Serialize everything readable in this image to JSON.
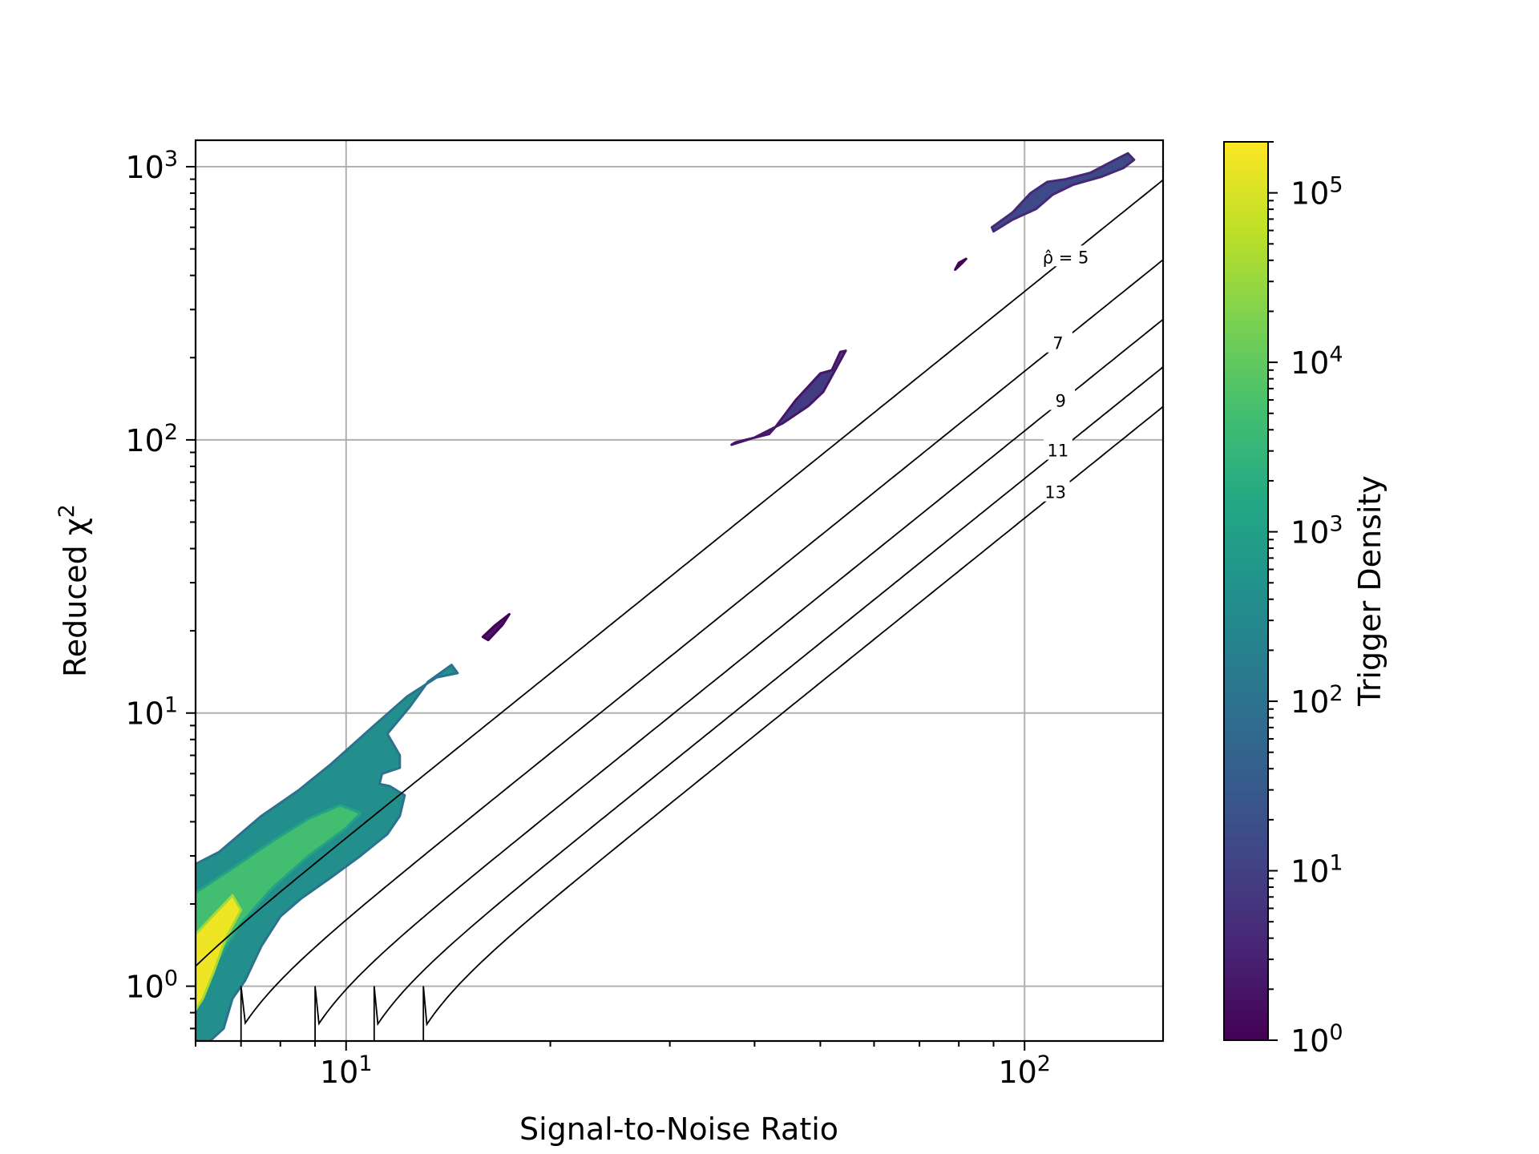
{
  "chart_data": {
    "type": "heatmap",
    "xlabel": "Signal-to-Noise Ratio",
    "ylabel": "Reduced χ²",
    "x_scale": "log",
    "y_scale": "log",
    "xlim": [
      6.0,
      160.0
    ],
    "ylim": [
      0.63,
      1250.0
    ],
    "x_ticks": [
      {
        "value": 10,
        "label_base": "10",
        "label_exp": "1"
      },
      {
        "value": 100,
        "label_base": "10",
        "label_exp": "2"
      }
    ],
    "y_ticks": [
      {
        "value": 1,
        "label_base": "10",
        "label_exp": "0"
      },
      {
        "value": 10,
        "label_base": "10",
        "label_exp": "1"
      },
      {
        "value": 100,
        "label_base": "10",
        "label_exp": "2"
      },
      {
        "value": 1000,
        "label_base": "10",
        "label_exp": "3"
      }
    ],
    "grid": true,
    "colormap": "viridis",
    "colorbar": {
      "label": "Trigger Density",
      "scale": "log",
      "range": [
        1,
        200000
      ],
      "ticks": [
        {
          "value": 1,
          "label_base": "10",
          "label_exp": "0"
        },
        {
          "value": 10,
          "label_base": "10",
          "label_exp": "1"
        },
        {
          "value": 100,
          "label_base": "10",
          "label_exp": "2"
        },
        {
          "value": 1000,
          "label_base": "10",
          "label_exp": "3"
        },
        {
          "value": 10000,
          "label_base": "10",
          "label_exp": "4"
        },
        {
          "value": 100000,
          "label_base": "10",
          "label_exp": "5"
        }
      ]
    },
    "contours": [
      {
        "rho": 5,
        "label": "ρ̂ = 5",
        "label_x": 115
      },
      {
        "rho": 7,
        "label": "7",
        "label_x": 112
      },
      {
        "rho": 9,
        "label": "9",
        "label_x": 113
      },
      {
        "rho": 11,
        "label": "11",
        "label_x": 112
      },
      {
        "rho": 13,
        "label": "13",
        "label_x": 111
      }
    ],
    "density_regions": [
      {
        "name": "main-band",
        "points": [
          [
            6.0,
            0.63
          ],
          [
            6.3,
            0.63
          ],
          [
            6.6,
            0.7
          ],
          [
            6.8,
            0.9
          ],
          [
            7.1,
            1.05
          ],
          [
            7.5,
            1.4
          ],
          [
            8.0,
            1.8
          ],
          [
            8.6,
            2.1
          ],
          [
            9.5,
            2.5
          ],
          [
            10.5,
            3.0
          ],
          [
            11.5,
            3.6
          ],
          [
            12.0,
            4.2
          ],
          [
            12.2,
            5.0
          ],
          [
            11.6,
            5.4
          ],
          [
            11.2,
            5.5
          ],
          [
            11.3,
            6.0
          ],
          [
            12.0,
            6.3
          ],
          [
            12.0,
            7.0
          ],
          [
            11.5,
            8.4
          ],
          [
            12.4,
            10.5
          ],
          [
            13.2,
            13.0
          ],
          [
            14.3,
            15.0
          ],
          [
            14.6,
            14.0
          ],
          [
            13.6,
            13.5
          ],
          [
            12.3,
            11.5
          ],
          [
            11.0,
            9.0
          ],
          [
            9.5,
            6.5
          ],
          [
            8.5,
            5.2
          ],
          [
            7.5,
            4.2
          ],
          [
            6.5,
            3.1
          ],
          [
            6.0,
            2.8
          ]
        ],
        "density": 400
      },
      {
        "name": "core-ridge",
        "points": [
          [
            6.0,
            1.0
          ],
          [
            6.4,
            1.2
          ],
          [
            7.0,
            1.7
          ],
          [
            7.8,
            2.3
          ],
          [
            8.8,
            3.0
          ],
          [
            10.0,
            3.8
          ],
          [
            10.5,
            4.3
          ],
          [
            9.8,
            4.6
          ],
          [
            8.8,
            4.1
          ],
          [
            7.8,
            3.4
          ],
          [
            6.8,
            2.7
          ],
          [
            6.0,
            2.2
          ]
        ],
        "density": 5000
      },
      {
        "name": "bright-core",
        "points": [
          [
            6.0,
            0.82
          ],
          [
            6.15,
            0.9
          ],
          [
            6.4,
            1.15
          ],
          [
            6.65,
            1.5
          ],
          [
            7.0,
            1.9
          ],
          [
            6.8,
            2.15
          ],
          [
            6.35,
            1.8
          ],
          [
            6.0,
            1.55
          ]
        ],
        "density": 150000
      },
      {
        "name": "outlier-16-22",
        "points": [
          [
            16.2,
            18.5
          ],
          [
            17.0,
            21.0
          ],
          [
            17.4,
            23.0
          ],
          [
            16.6,
            21.0
          ],
          [
            15.9,
            19.0
          ]
        ],
        "density": 2
      },
      {
        "name": "cluster-40-100",
        "points": [
          [
            37.5,
            98
          ],
          [
            42.0,
            105
          ],
          [
            43.0,
            112
          ],
          [
            46.0,
            140
          ],
          [
            50.0,
            175
          ],
          [
            52.0,
            180
          ],
          [
            53.5,
            210
          ],
          [
            54.5,
            212
          ],
          [
            50.5,
            150
          ],
          [
            48.0,
            133
          ],
          [
            44.0,
            115
          ],
          [
            40.0,
            102
          ],
          [
            37.0,
            96
          ]
        ],
        "density": 8
      },
      {
        "name": "cluster-80-440",
        "points": [
          [
            79.0,
            420
          ],
          [
            81.0,
            445
          ],
          [
            82.0,
            460
          ],
          [
            80.0,
            445
          ]
        ],
        "density": 2
      },
      {
        "name": "cluster-90-1100",
        "points": [
          [
            89.5,
            600
          ],
          [
            96.0,
            680
          ],
          [
            102.0,
            800
          ],
          [
            108.0,
            880
          ],
          [
            115.0,
            900
          ],
          [
            125.0,
            950
          ],
          [
            135.0,
            1050
          ],
          [
            142.0,
            1120
          ],
          [
            145.0,
            1060
          ],
          [
            140.0,
            990
          ],
          [
            130.0,
            920
          ],
          [
            118.0,
            860
          ],
          [
            110.0,
            790
          ],
          [
            104.0,
            700
          ],
          [
            96.0,
            640
          ],
          [
            90.0,
            580
          ]
        ],
        "density": 15
      }
    ]
  }
}
